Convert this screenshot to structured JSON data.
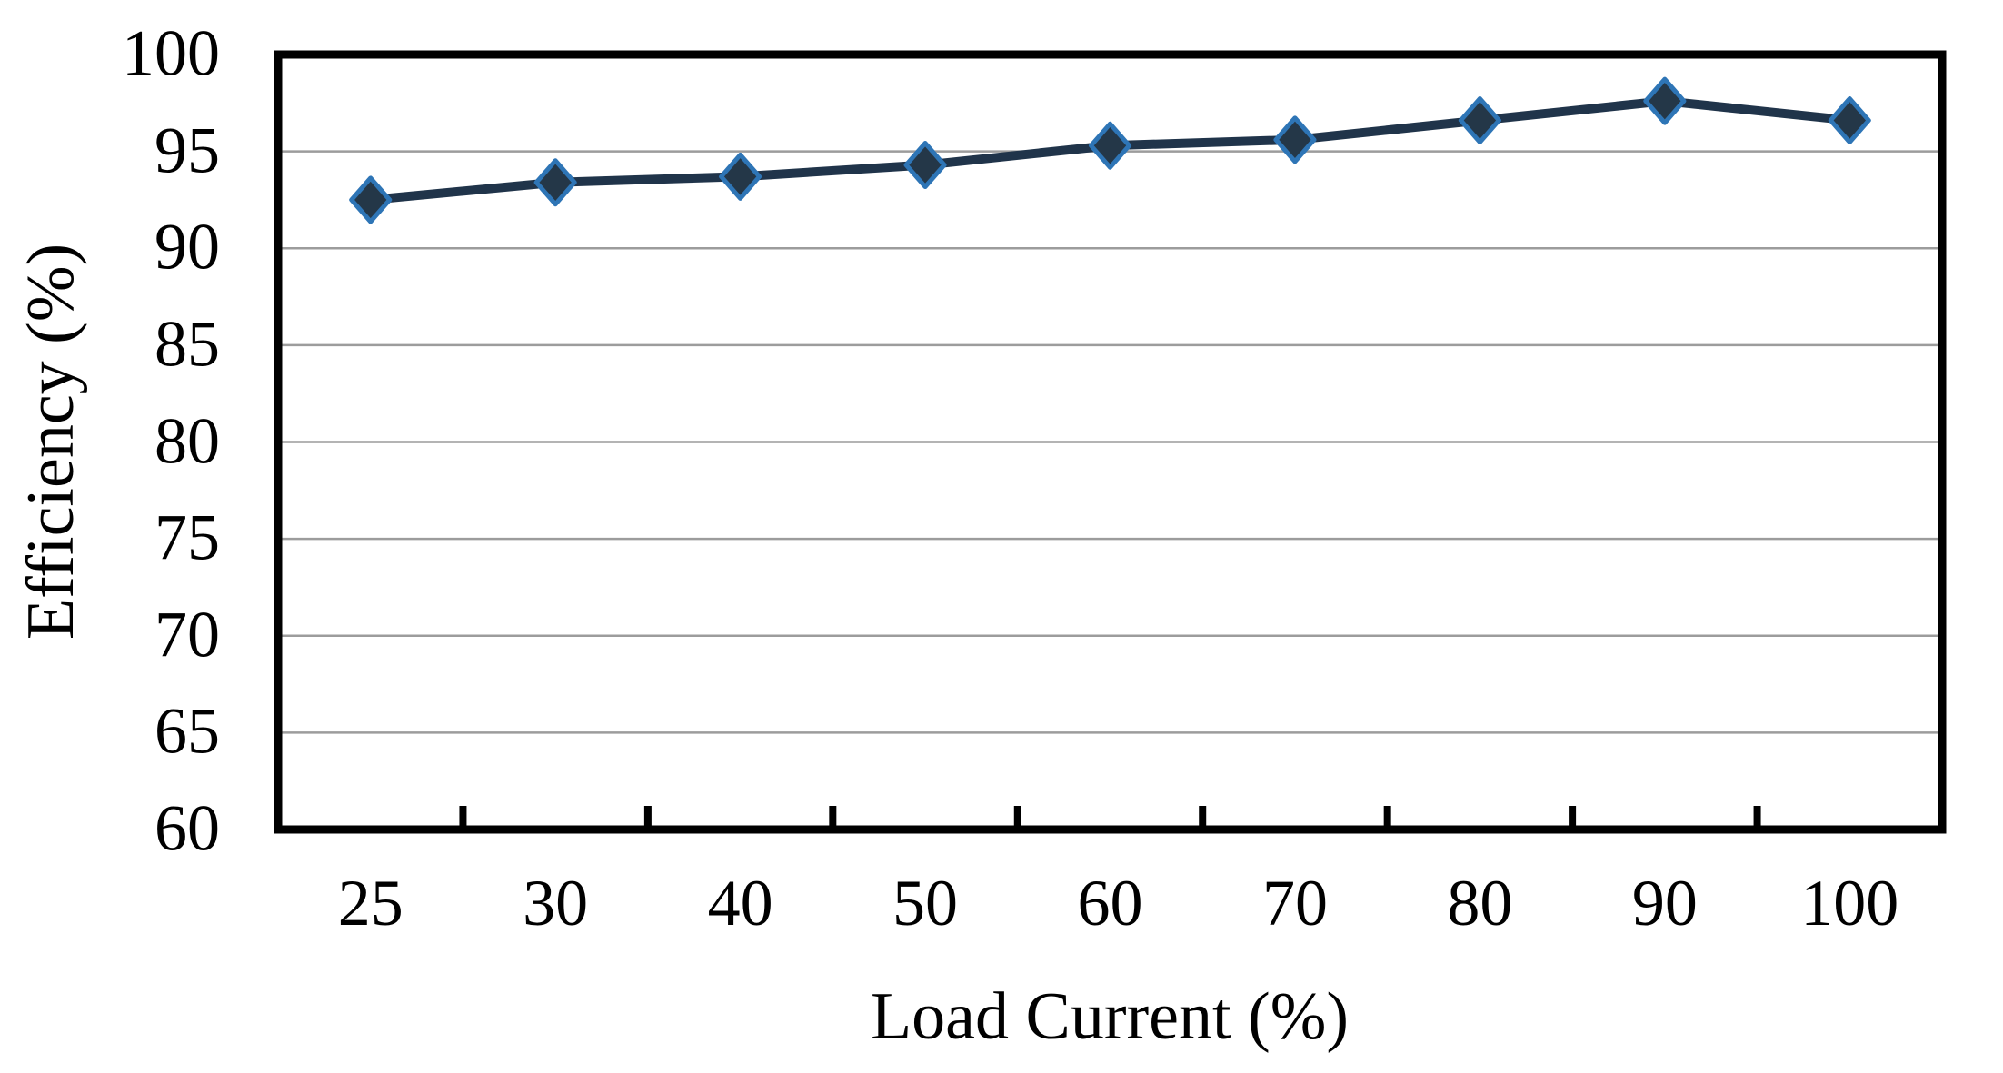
{
  "chart_data": {
    "type": "line",
    "title": "",
    "xlabel": "Load Current (%)",
    "ylabel": "Efficiency (%)",
    "categories": [
      "25",
      "30",
      "40",
      "50",
      "60",
      "70",
      "80",
      "90",
      "100"
    ],
    "series": [
      {
        "name": "Efficiency",
        "values": [
          92.5,
          93.4,
          93.7,
          94.3,
          95.3,
          95.6,
          96.6,
          97.6,
          96.6
        ]
      }
    ],
    "ylim": [
      60,
      100
    ],
    "yticks": [
      60,
      65,
      70,
      75,
      80,
      85,
      90,
      95,
      100
    ],
    "ytick_step": 5,
    "grid": "horizontal",
    "legend_position": "none",
    "marker_shape": "diamond",
    "line_color": "#20344a",
    "marker_fill": "#243748",
    "marker_stroke": "#2e75b6",
    "gridline_color": "#9c9c9c",
    "axis_color": "#000000",
    "background": "#ffffff"
  }
}
